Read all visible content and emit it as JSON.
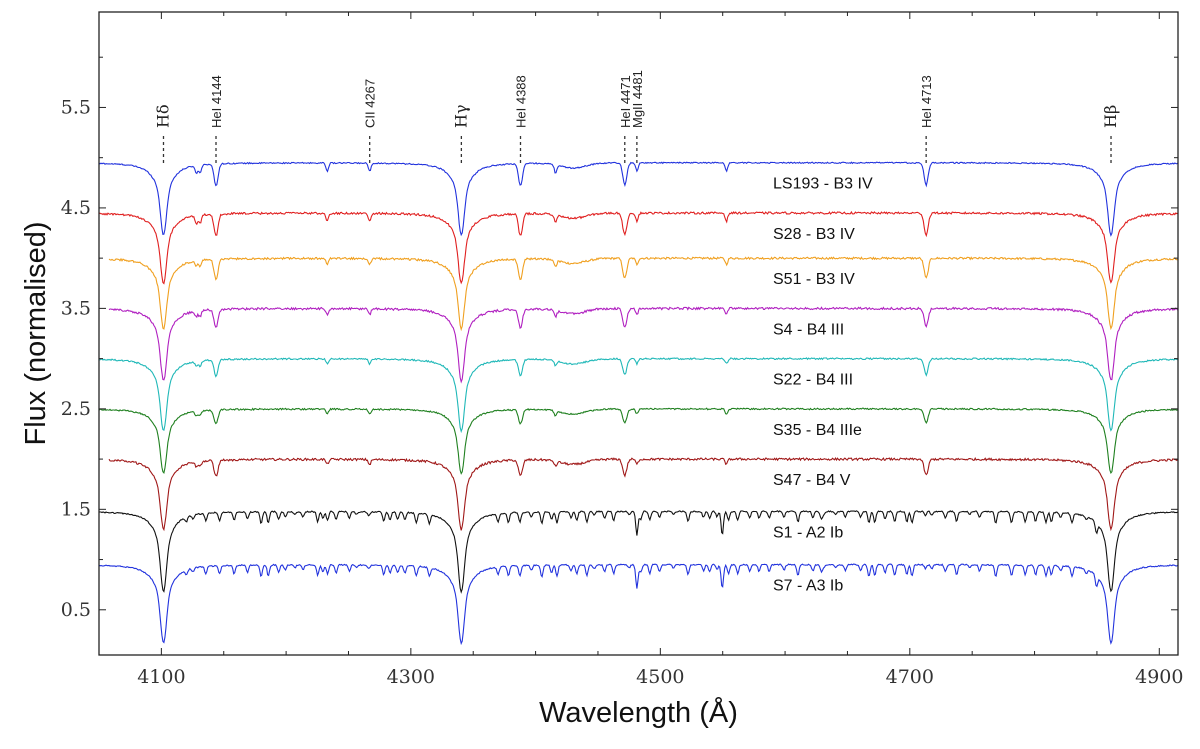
{
  "chart_data": {
    "type": "line",
    "xlabel": "Wavelength (Å)",
    "ylabel": "Flux (normalised)",
    "xlim": [
      4050,
      4915
    ],
    "ylim": [
      0.05,
      6.45
    ],
    "x_ticks": [
      4100,
      4300,
      4500,
      4700,
      4900
    ],
    "x_tick_labels": [
      "4100",
      "4300",
      "4500",
      "4700",
      "4900"
    ],
    "y_ticks": [
      0.5,
      1.5,
      2.5,
      3.5,
      4.5,
      5.5
    ],
    "y_tick_labels": [
      "0.5",
      "1.5",
      "2.5",
      "3.5",
      "4.5",
      "5.5"
    ],
    "grid": false,
    "spectral_lines": [
      {
        "label": "Hδ",
        "wavelength": 4101.7,
        "balmer": true
      },
      {
        "label": "HeI 4144",
        "wavelength": 4143.8,
        "balmer": false
      },
      {
        "label": "CII 4267",
        "wavelength": 4267.0,
        "balmer": false
      },
      {
        "label": "Hγ",
        "wavelength": 4340.5,
        "balmer": true
      },
      {
        "label": "HeI 4388",
        "wavelength": 4387.9,
        "balmer": false
      },
      {
        "label": "HeI 4471",
        "wavelength": 4471.5,
        "balmer": false
      },
      {
        "label": "MgII 4481",
        "wavelength": 4481.2,
        "balmer": false
      },
      {
        "label": "HeI 4713",
        "wavelength": 4713.1,
        "balmer": false
      },
      {
        "label": "Hβ",
        "wavelength": 4861.3,
        "balmer": true
      }
    ],
    "series": [
      {
        "name": "LS193 - B3 IV",
        "offset": 4.95,
        "color": "#2233dd",
        "x_start": 4050,
        "type": "B",
        "depths": {
          "balmer": 0.72,
          "he": 0.22,
          "metal": 0.08,
          "noise": 0.012
        }
      },
      {
        "name": "S28 - B3 IV",
        "offset": 4.45,
        "color": "#e02020",
        "x_start": 4050,
        "type": "B",
        "depths": {
          "balmer": 0.7,
          "he": 0.22,
          "metal": 0.08,
          "noise": 0.02
        }
      },
      {
        "name": "S51 - B3 IV",
        "offset": 4.0,
        "color": "#f0a020",
        "x_start": 4058,
        "type": "B",
        "depths": {
          "balmer": 0.7,
          "he": 0.2,
          "metal": 0.06,
          "noise": 0.02
        }
      },
      {
        "name": "S4 - B4 III",
        "offset": 3.5,
        "color": "#b020c0",
        "x_start": 4058,
        "type": "B",
        "depths": {
          "balmer": 0.72,
          "he": 0.18,
          "metal": 0.06,
          "noise": 0.022
        }
      },
      {
        "name": "S22 - B4 III",
        "offset": 3.0,
        "color": "#20b8b8",
        "x_start": 4050,
        "type": "B",
        "depths": {
          "balmer": 0.72,
          "he": 0.16,
          "metal": 0.05,
          "noise": 0.015
        }
      },
      {
        "name": "S35 - B4 IIIe",
        "offset": 2.5,
        "color": "#208020",
        "x_start": 4050,
        "type": "B",
        "depths": {
          "balmer": 0.64,
          "he": 0.14,
          "metal": 0.05,
          "noise": 0.015
        }
      },
      {
        "name": "S47 - B4 V",
        "offset": 2.0,
        "color": "#a01818",
        "x_start": 4058,
        "type": "B",
        "depths": {
          "balmer": 0.7,
          "he": 0.16,
          "metal": 0.05,
          "noise": 0.022
        }
      },
      {
        "name": "S1 - A2 Ib",
        "offset": 1.48,
        "color": "#111111",
        "x_start": 4050,
        "type": "A",
        "depths": {
          "balmer": 0.8,
          "he": 0.0,
          "metal": 0.12,
          "noise": 0.012
        }
      },
      {
        "name": "S7 - A3 Ib",
        "offset": 0.95,
        "color": "#2233dd",
        "x_start": 4050,
        "type": "A",
        "depths": {
          "balmer": 0.78,
          "he": 0.0,
          "metal": 0.12,
          "noise": 0.012
        }
      }
    ]
  }
}
